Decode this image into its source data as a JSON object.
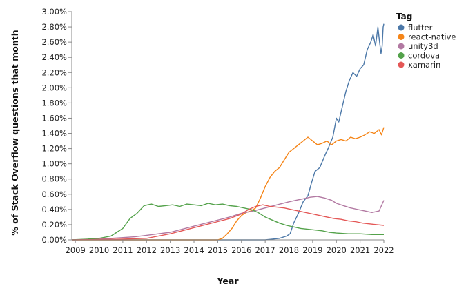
{
  "chart_data": {
    "type": "line",
    "title": "",
    "xlabel": "Year",
    "ylabel": "% of Stack Overflow questions that month",
    "xlim": [
      2008.85,
      2022.0
    ],
    "ylim": [
      0,
      3.0
    ],
    "x_ticks": [
      "2009",
      "2010",
      "2011",
      "2012",
      "2013",
      "2014",
      "2015",
      "2016",
      "2017",
      "2018",
      "2019",
      "2020",
      "2021",
      "2022"
    ],
    "y_ticks": [
      "0.00%",
      "0.20%",
      "0.40%",
      "0.60%",
      "0.80%",
      "1.00%",
      "1.20%",
      "1.40%",
      "1.60%",
      "1.80%",
      "2.00%",
      "2.20%",
      "2.40%",
      "2.60%",
      "2.80%",
      "3.00%"
    ],
    "grid": false,
    "legend": {
      "title": "Tag",
      "position": "right"
    },
    "series": [
      {
        "name": "flutter",
        "color": "#4c78a8",
        "points": [
          [
            2008.85,
            0
          ],
          [
            2017.0,
            0
          ],
          [
            2017.3,
            0.01
          ],
          [
            2017.6,
            0.02
          ],
          [
            2017.9,
            0.05
          ],
          [
            2018.05,
            0.08
          ],
          [
            2018.2,
            0.22
          ],
          [
            2018.4,
            0.35
          ],
          [
            2018.6,
            0.5
          ],
          [
            2018.8,
            0.58
          ],
          [
            2018.95,
            0.75
          ],
          [
            2019.1,
            0.9
          ],
          [
            2019.3,
            0.95
          ],
          [
            2019.5,
            1.1
          ],
          [
            2019.65,
            1.2
          ],
          [
            2019.85,
            1.35
          ],
          [
            2020.0,
            1.6
          ],
          [
            2020.1,
            1.55
          ],
          [
            2020.25,
            1.75
          ],
          [
            2020.4,
            1.95
          ],
          [
            2020.55,
            2.1
          ],
          [
            2020.7,
            2.2
          ],
          [
            2020.85,
            2.15
          ],
          [
            2021.0,
            2.25
          ],
          [
            2021.15,
            2.3
          ],
          [
            2021.3,
            2.5
          ],
          [
            2021.45,
            2.6
          ],
          [
            2021.55,
            2.7
          ],
          [
            2021.65,
            2.55
          ],
          [
            2021.75,
            2.8
          ],
          [
            2021.82,
            2.6
          ],
          [
            2021.88,
            2.45
          ],
          [
            2021.93,
            2.55
          ],
          [
            2021.97,
            2.8
          ],
          [
            2022.0,
            2.84
          ]
        ]
      },
      {
        "name": "react-native",
        "color": "#f58518",
        "points": [
          [
            2008.85,
            0
          ],
          [
            2015.0,
            0
          ],
          [
            2015.2,
            0.02
          ],
          [
            2015.4,
            0.08
          ],
          [
            2015.6,
            0.15
          ],
          [
            2015.8,
            0.25
          ],
          [
            2016.0,
            0.32
          ],
          [
            2016.2,
            0.36
          ],
          [
            2016.4,
            0.38
          ],
          [
            2016.6,
            0.42
          ],
          [
            2016.8,
            0.55
          ],
          [
            2017.0,
            0.7
          ],
          [
            2017.2,
            0.82
          ],
          [
            2017.4,
            0.9
          ],
          [
            2017.6,
            0.95
          ],
          [
            2017.8,
            1.05
          ],
          [
            2018.0,
            1.15
          ],
          [
            2018.2,
            1.2
          ],
          [
            2018.4,
            1.25
          ],
          [
            2018.6,
            1.3
          ],
          [
            2018.8,
            1.35
          ],
          [
            2019.0,
            1.3
          ],
          [
            2019.2,
            1.25
          ],
          [
            2019.4,
            1.27
          ],
          [
            2019.6,
            1.3
          ],
          [
            2019.8,
            1.25
          ],
          [
            2020.0,
            1.3
          ],
          [
            2020.2,
            1.32
          ],
          [
            2020.4,
            1.3
          ],
          [
            2020.6,
            1.35
          ],
          [
            2020.8,
            1.33
          ],
          [
            2021.0,
            1.35
          ],
          [
            2021.2,
            1.38
          ],
          [
            2021.4,
            1.42
          ],
          [
            2021.6,
            1.4
          ],
          [
            2021.8,
            1.45
          ],
          [
            2021.9,
            1.38
          ],
          [
            2022.0,
            1.48
          ]
        ]
      },
      {
        "name": "unity3d",
        "color": "#b279a2",
        "points": [
          [
            2008.85,
            0
          ],
          [
            2009.5,
            0.005
          ],
          [
            2010.0,
            0.01
          ],
          [
            2010.5,
            0.02
          ],
          [
            2011.0,
            0.03
          ],
          [
            2011.5,
            0.04
          ],
          [
            2012.0,
            0.06
          ],
          [
            2012.5,
            0.08
          ],
          [
            2013.0,
            0.1
          ],
          [
            2013.5,
            0.14
          ],
          [
            2014.0,
            0.18
          ],
          [
            2014.5,
            0.22
          ],
          [
            2015.0,
            0.26
          ],
          [
            2015.5,
            0.3
          ],
          [
            2016.0,
            0.35
          ],
          [
            2016.5,
            0.38
          ],
          [
            2017.0,
            0.42
          ],
          [
            2017.5,
            0.46
          ],
          [
            2018.0,
            0.5
          ],
          [
            2018.3,
            0.52
          ],
          [
            2018.6,
            0.54
          ],
          [
            2018.9,
            0.56
          ],
          [
            2019.2,
            0.57
          ],
          [
            2019.5,
            0.55
          ],
          [
            2019.8,
            0.52
          ],
          [
            2020.0,
            0.48
          ],
          [
            2020.3,
            0.45
          ],
          [
            2020.6,
            0.42
          ],
          [
            2020.9,
            0.4
          ],
          [
            2021.2,
            0.38
          ],
          [
            2021.5,
            0.36
          ],
          [
            2021.8,
            0.38
          ],
          [
            2022.0,
            0.52
          ]
        ]
      },
      {
        "name": "cordova",
        "color": "#54a24b",
        "points": [
          [
            2008.85,
            0
          ],
          [
            2009.5,
            0.01
          ],
          [
            2010.0,
            0.02
          ],
          [
            2010.5,
            0.05
          ],
          [
            2011.0,
            0.15
          ],
          [
            2011.3,
            0.28
          ],
          [
            2011.6,
            0.35
          ],
          [
            2011.9,
            0.45
          ],
          [
            2012.2,
            0.47
          ],
          [
            2012.5,
            0.44
          ],
          [
            2012.8,
            0.45
          ],
          [
            2013.1,
            0.46
          ],
          [
            2013.4,
            0.44
          ],
          [
            2013.7,
            0.47
          ],
          [
            2014.0,
            0.46
          ],
          [
            2014.3,
            0.45
          ],
          [
            2014.6,
            0.48
          ],
          [
            2014.9,
            0.46
          ],
          [
            2015.2,
            0.47
          ],
          [
            2015.5,
            0.45
          ],
          [
            2015.8,
            0.44
          ],
          [
            2016.1,
            0.42
          ],
          [
            2016.4,
            0.4
          ],
          [
            2016.7,
            0.36
          ],
          [
            2017.0,
            0.3
          ],
          [
            2017.3,
            0.26
          ],
          [
            2017.6,
            0.22
          ],
          [
            2017.9,
            0.19
          ],
          [
            2018.2,
            0.17
          ],
          [
            2018.5,
            0.15
          ],
          [
            2018.8,
            0.14
          ],
          [
            2019.1,
            0.13
          ],
          [
            2019.4,
            0.12
          ],
          [
            2019.7,
            0.1
          ],
          [
            2020.0,
            0.09
          ],
          [
            2020.5,
            0.08
          ],
          [
            2021.0,
            0.08
          ],
          [
            2021.5,
            0.07
          ],
          [
            2022.0,
            0.07
          ]
        ]
      },
      {
        "name": "xamarin",
        "color": "#e45756",
        "points": [
          [
            2008.85,
            0
          ],
          [
            2010.0,
            0.005
          ],
          [
            2011.0,
            0.01
          ],
          [
            2012.0,
            0.02
          ],
          [
            2012.5,
            0.05
          ],
          [
            2013.0,
            0.08
          ],
          [
            2013.5,
            0.12
          ],
          [
            2014.0,
            0.16
          ],
          [
            2014.5,
            0.2
          ],
          [
            2015.0,
            0.24
          ],
          [
            2015.5,
            0.28
          ],
          [
            2016.0,
            0.34
          ],
          [
            2016.3,
            0.4
          ],
          [
            2016.6,
            0.44
          ],
          [
            2016.9,
            0.46
          ],
          [
            2017.2,
            0.44
          ],
          [
            2017.5,
            0.43
          ],
          [
            2017.8,
            0.42
          ],
          [
            2018.1,
            0.4
          ],
          [
            2018.4,
            0.38
          ],
          [
            2018.7,
            0.36
          ],
          [
            2019.0,
            0.34
          ],
          [
            2019.3,
            0.32
          ],
          [
            2019.6,
            0.3
          ],
          [
            2019.9,
            0.28
          ],
          [
            2020.2,
            0.27
          ],
          [
            2020.5,
            0.25
          ],
          [
            2020.8,
            0.24
          ],
          [
            2021.1,
            0.22
          ],
          [
            2021.4,
            0.21
          ],
          [
            2021.7,
            0.2
          ],
          [
            2022.0,
            0.19
          ]
        ]
      }
    ]
  }
}
